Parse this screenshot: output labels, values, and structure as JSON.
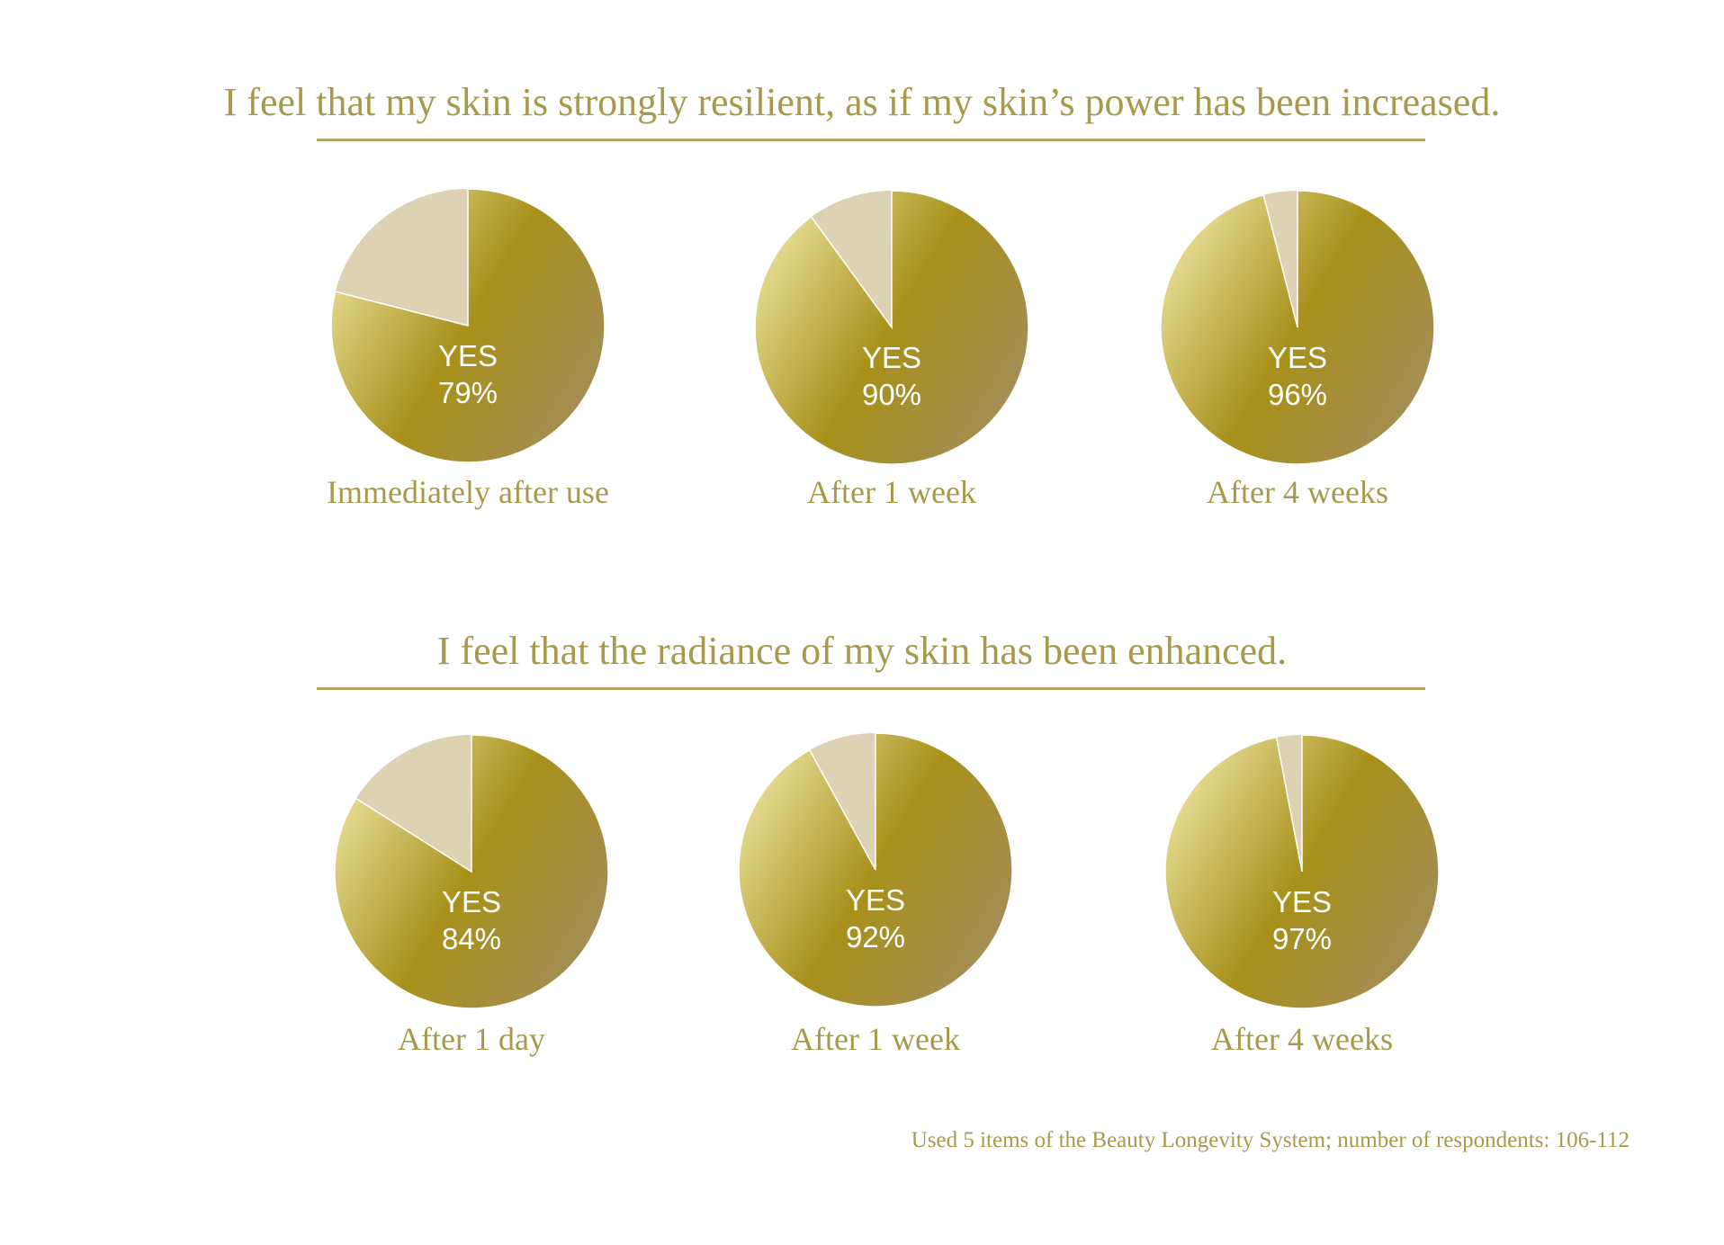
{
  "chart_data": [
    {
      "type": "pie",
      "title": "I feel that my skin is strongly resilient, as if my skin’s power has been increased.",
      "slice_label": "YES",
      "pies": [
        {
          "label": "Immediately after use",
          "yes": 79
        },
        {
          "label": "After 1 week",
          "yes": 90
        },
        {
          "label": "After 4 weeks",
          "yes": 96
        }
      ]
    },
    {
      "type": "pie",
      "title": "I feel that the radiance of my skin has been enhanced.",
      "slice_label": "YES",
      "pies": [
        {
          "label": "After 1 day",
          "yes": 84
        },
        {
          "label": "After 1 week",
          "yes": 92
        },
        {
          "label": "After 4 weeks",
          "yes": 97
        }
      ]
    }
  ],
  "footnote": "Used 5 items of the Beauty Longevity System; number of respondents: 106-112",
  "colors": {
    "yes_dark": "#a8901a",
    "yes_light": "#ece4a0",
    "yes_right": "#a38d5c",
    "no": "#ddd2b4",
    "text": "#a89a4c"
  }
}
